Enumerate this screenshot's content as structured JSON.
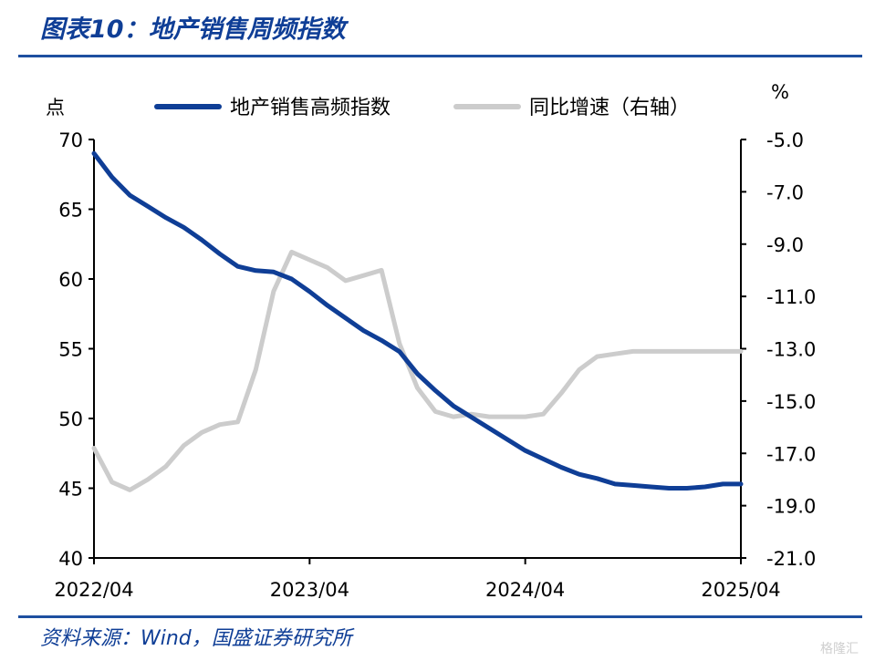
{
  "header": {
    "title": "图表10：地产销售周频指数"
  },
  "footer": {
    "source": "资料来源：Wind，国盛证券研究所",
    "watermark": "格隆汇"
  },
  "chart_data": {
    "type": "line",
    "y_left_unit": "点",
    "y_right_unit": "%",
    "x_ticks": [
      "2022/04",
      "2023/04",
      "2024/04",
      "2025/04"
    ],
    "x_range": [
      0,
      36
    ],
    "y_left": {
      "ticks": [
        40,
        45,
        50,
        55,
        60,
        65,
        70
      ],
      "range": [
        40,
        70
      ]
    },
    "y_right": {
      "ticks": [
        "-5.0",
        "-7.0",
        "-9.0",
        "-11.0",
        "-13.0",
        "-15.0",
        "-17.0",
        "-19.0",
        "-21.0"
      ],
      "range": [
        -21,
        -5
      ]
    },
    "legend_position": "top",
    "series": [
      {
        "name": "地产销售高频指数",
        "axis": "left",
        "color": "#0f3e96",
        "x": [
          0,
          1,
          2,
          3,
          4,
          5,
          6,
          7,
          8,
          9,
          10,
          11,
          12,
          13,
          14,
          15,
          16,
          17,
          18,
          19,
          20,
          21,
          22,
          23,
          24,
          25,
          26,
          27,
          28,
          29,
          30,
          31,
          32,
          33,
          34,
          35,
          36
        ],
        "values": [
          69.0,
          67.3,
          66.0,
          65.2,
          64.4,
          63.7,
          62.8,
          61.8,
          60.9,
          60.6,
          60.5,
          60.0,
          59.1,
          58.1,
          57.2,
          56.3,
          55.6,
          54.8,
          53.2,
          52.0,
          50.9,
          50.1,
          49.3,
          48.5,
          47.7,
          47.1,
          46.5,
          46.0,
          45.7,
          45.3,
          45.2,
          45.1,
          45.0,
          45.0,
          45.1,
          45.3,
          45.3
        ]
      },
      {
        "name": "同比增速（右轴）",
        "axis": "right",
        "color": "#cccccc",
        "x": [
          0,
          1,
          2,
          3,
          4,
          5,
          6,
          7,
          8,
          9,
          10,
          11,
          12,
          13,
          14,
          15,
          16,
          17,
          18,
          19,
          20,
          21,
          22,
          23,
          24,
          25,
          26,
          27,
          28,
          29,
          30,
          31,
          32,
          33,
          34,
          35,
          36
        ],
        "values": [
          -16.8,
          -18.1,
          -18.4,
          -18.0,
          -17.5,
          -16.7,
          -16.2,
          -15.9,
          -15.8,
          -13.8,
          -10.8,
          -9.3,
          -9.6,
          -9.9,
          -10.4,
          -10.2,
          -10.0,
          -12.8,
          -14.5,
          -15.4,
          -15.6,
          -15.5,
          -15.6,
          -15.6,
          -15.6,
          -15.5,
          -14.7,
          -13.8,
          -13.3,
          -13.2,
          -13.1,
          -13.1,
          -13.1,
          -13.1,
          -13.1,
          -13.1,
          -13.1
        ]
      }
    ]
  }
}
